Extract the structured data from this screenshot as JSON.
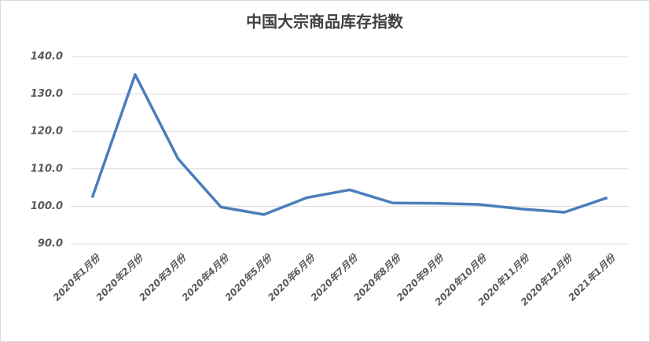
{
  "chart_data": {
    "type": "line",
    "title": "中国大宗商品库存指数",
    "categories": [
      "2020年1月份",
      "2020年2月份",
      "2020年3月份",
      "2020年4月份",
      "2020年5月份",
      "2020年6月份",
      "2020年7月份",
      "2020年8月份",
      "2020年9月份",
      "2020年10月份",
      "2020年11月份",
      "2020年12月份",
      "2021年1月份"
    ],
    "series": [
      {
        "color": "#4a7ebb",
        "values": [
          102.3,
          135.2,
          112.7,
          99.8,
          97.8,
          102.3,
          104.4,
          100.9,
          100.8,
          100.5,
          99.3,
          98.4,
          102.3
        ]
      }
    ],
    "ylim": [
      90,
      140
    ],
    "yticks": [
      {
        "value": 90,
        "label": "90.0"
      },
      {
        "value": 100,
        "label": "100.0"
      },
      {
        "value": 110,
        "label": "110.0"
      },
      {
        "value": 120,
        "label": "120.0"
      },
      {
        "value": 130,
        "label": "130.0"
      },
      {
        "value": 140,
        "label": "140.0"
      }
    ],
    "grid": true
  }
}
